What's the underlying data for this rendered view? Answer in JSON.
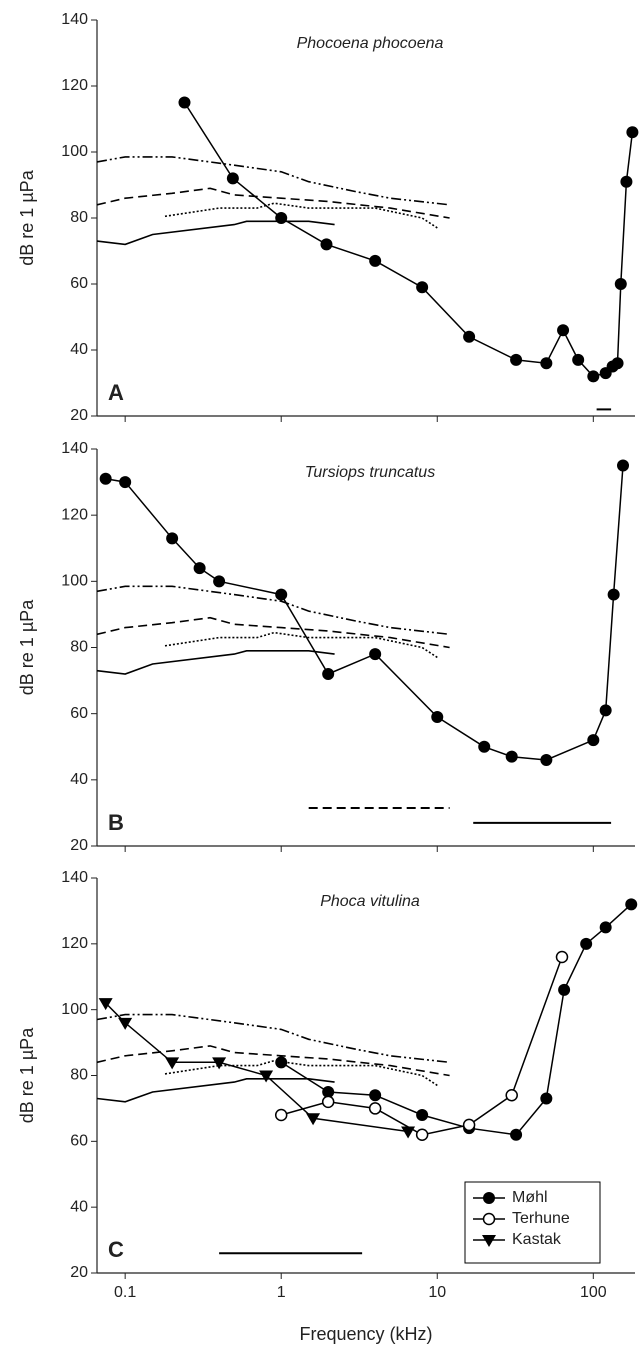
{
  "chart_data": [
    {
      "type": "line",
      "title": "Phocoena phocoena",
      "label": "A",
      "ylabel": "dB re 1 µPa",
      "xscale": "log",
      "show_xtick_labels": false,
      "xlim": [
        0.066,
        185
      ],
      "ylim": [
        20,
        140
      ],
      "xticks": [
        0.1,
        1,
        10,
        100
      ],
      "yticks": [
        20,
        40,
        60,
        80,
        100,
        120,
        140
      ],
      "series": [
        {
          "color": "#000000",
          "style": "dashdotdot",
          "marker": null,
          "x": [
            0.066,
            0.1,
            0.2,
            0.5,
            1,
            1.5,
            3,
            5,
            12
          ],
          "values": [
            97,
            98.5,
            98.5,
            96,
            94,
            91,
            88,
            86,
            84
          ]
        },
        {
          "color": "#000000",
          "style": "dashed",
          "marker": null,
          "x": [
            0.066,
            0.1,
            0.2,
            0.35,
            0.5,
            1,
            2,
            5,
            12
          ],
          "values": [
            84,
            86,
            87.5,
            89,
            87,
            86,
            85,
            83,
            80
          ]
        },
        {
          "color": "#000000",
          "style": "dotted",
          "marker": null,
          "x": [
            0.18,
            0.4,
            0.7,
            0.9,
            1.5,
            4,
            8,
            10
          ],
          "values": [
            80.5,
            83,
            83,
            84.5,
            83,
            83,
            80,
            77
          ]
        },
        {
          "color": "#000000",
          "style": "solid",
          "marker": null,
          "x": [
            0.066,
            0.1,
            0.15,
            0.5,
            0.6,
            1,
            1.5,
            2.2
          ],
          "values": [
            73,
            72,
            75,
            78,
            79,
            79,
            79,
            78
          ]
        },
        {
          "color": "#000000",
          "style": "solid",
          "marker": "circle",
          "x": [
            0.24,
            0.49,
            1,
            1.95,
            4,
            8,
            16,
            32,
            50,
            64,
            80,
            100,
            120,
            133,
            143,
            150,
            163,
            178
          ],
          "values": [
            115,
            92,
            80,
            72,
            67,
            59,
            44,
            37,
            36,
            46,
            37,
            32,
            33,
            35,
            36,
            60,
            91,
            106
          ]
        }
      ],
      "ranges": [
        {
          "style": "solid",
          "x": [
            105,
            130
          ],
          "y": 22
        }
      ]
    },
    {
      "type": "line",
      "title": "Tursiops truncatus",
      "label": "B",
      "ylabel": "dB re 1 µPa",
      "xscale": "log",
      "show_xtick_labels": false,
      "xlim": [
        0.066,
        185
      ],
      "ylim": [
        20,
        140
      ],
      "xticks": [
        0.1,
        1,
        10,
        100
      ],
      "yticks": [
        20,
        40,
        60,
        80,
        100,
        120,
        140
      ],
      "series": [
        {
          "color": "#000000",
          "style": "dashdotdot",
          "marker": null,
          "x": [
            0.066,
            0.1,
            0.2,
            0.5,
            1,
            1.5,
            3,
            5,
            12
          ],
          "values": [
            97,
            98.5,
            98.5,
            96,
            94,
            91,
            88,
            86,
            84
          ]
        },
        {
          "color": "#000000",
          "style": "dashed",
          "marker": null,
          "x": [
            0.066,
            0.1,
            0.2,
            0.35,
            0.5,
            1,
            2,
            5,
            12
          ],
          "values": [
            84,
            86,
            87.5,
            89,
            87,
            86,
            85,
            83,
            80
          ]
        },
        {
          "color": "#000000",
          "style": "dotted",
          "marker": null,
          "x": [
            0.18,
            0.4,
            0.7,
            0.9,
            1.5,
            4,
            8,
            10
          ],
          "values": [
            80.5,
            83,
            83,
            84.5,
            83,
            83,
            80,
            77
          ]
        },
        {
          "color": "#000000",
          "style": "solid",
          "marker": null,
          "x": [
            0.066,
            0.1,
            0.15,
            0.5,
            0.6,
            1,
            1.5,
            2.2
          ],
          "values": [
            73,
            72,
            75,
            78,
            79,
            79,
            79,
            78
          ]
        },
        {
          "color": "#000000",
          "style": "solid",
          "marker": "circle",
          "x": [
            0.075,
            0.1,
            0.2,
            0.3,
            0.4,
            1,
            2,
            4,
            10,
            20,
            30,
            50,
            100,
            120,
            135,
            155
          ],
          "values": [
            131,
            130,
            113,
            104,
            100,
            96,
            72,
            78,
            59,
            50,
            47,
            46,
            52,
            61,
            96,
            135
          ]
        }
      ],
      "ranges": [
        {
          "style": "dashed",
          "x": [
            1.5,
            12
          ],
          "y": 31.5
        },
        {
          "style": "solid",
          "x": [
            17,
            130
          ],
          "y": 27
        }
      ]
    },
    {
      "type": "line",
      "title": "Phoca vitulina",
      "label": "C",
      "ylabel": "dB re 1 µPa",
      "xlabel": "Frequency (kHz)",
      "xscale": "log",
      "show_xtick_labels": true,
      "xlim": [
        0.066,
        185
      ],
      "ylim": [
        20,
        140
      ],
      "xticks": [
        0.1,
        1,
        10,
        100
      ],
      "yticks": [
        20,
        40,
        60,
        80,
        100,
        120,
        140
      ],
      "legend": "lower right",
      "series": [
        {
          "color": "#000000",
          "style": "dashdotdot",
          "marker": null,
          "x": [
            0.066,
            0.1,
            0.2,
            0.5,
            1,
            1.5,
            3,
            5,
            12
          ],
          "values": [
            97,
            98.5,
            98.5,
            96,
            94,
            91,
            88,
            86,
            84
          ]
        },
        {
          "color": "#000000",
          "style": "dashed",
          "marker": null,
          "x": [
            0.066,
            0.1,
            0.2,
            0.35,
            0.5,
            1,
            2,
            5,
            12
          ],
          "values": [
            84,
            86,
            87.5,
            89,
            87,
            86,
            85,
            83,
            80
          ]
        },
        {
          "color": "#000000",
          "style": "dotted",
          "marker": null,
          "x": [
            0.18,
            0.4,
            0.7,
            0.9,
            1.5,
            4,
            8,
            10
          ],
          "values": [
            80.5,
            83,
            83,
            84.5,
            83,
            83,
            80,
            77
          ]
        },
        {
          "color": "#000000",
          "style": "solid",
          "marker": null,
          "x": [
            0.066,
            0.1,
            0.15,
            0.5,
            0.6,
            1,
            1.5,
            2.2
          ],
          "values": [
            73,
            72,
            75,
            78,
            79,
            79,
            79,
            78
          ]
        },
        {
          "name": "Møhl",
          "color": "#000000",
          "style": "solid",
          "marker": "circle",
          "x": [
            1,
            2,
            4,
            8,
            16,
            32,
            50,
            65,
            90,
            120,
            175
          ],
          "values": [
            84,
            75,
            74,
            68,
            64,
            62,
            73,
            106,
            120,
            125,
            132
          ]
        },
        {
          "name": "Terhune",
          "color": "#000000",
          "style": "solid",
          "marker": "open-circle",
          "x": [
            1,
            2,
            4,
            8,
            16,
            30,
            63
          ],
          "values": [
            68,
            72,
            70,
            62,
            65,
            74,
            116
          ]
        },
        {
          "name": "Kastak",
          "color": "#000000",
          "style": "solid",
          "marker": "triangle",
          "x": [
            0.075,
            0.1,
            0.2,
            0.4,
            0.8,
            1.6,
            6.5
          ],
          "values": [
            102,
            96,
            84,
            84,
            80,
            67,
            63
          ]
        }
      ],
      "ranges": [
        {
          "style": "solid",
          "x": [
            0.4,
            3.3
          ],
          "y": 26
        }
      ]
    }
  ]
}
